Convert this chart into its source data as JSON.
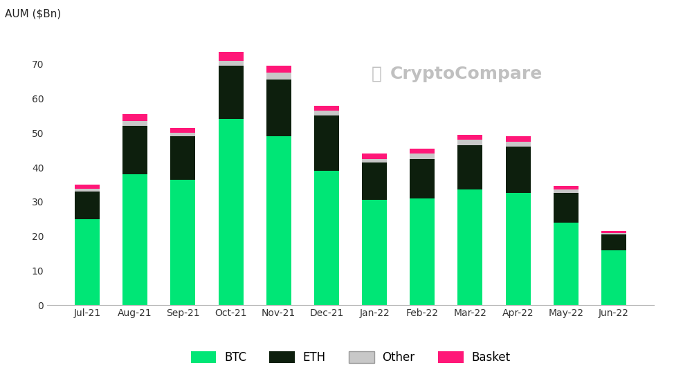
{
  "categories": [
    "Jul-21",
    "Aug-21",
    "Sep-21",
    "Oct-21",
    "Nov-21",
    "Dec-21",
    "Jan-22",
    "Feb-22",
    "Mar-22",
    "Apr-22",
    "May-22",
    "Jun-22"
  ],
  "btc": [
    25.0,
    38.0,
    36.5,
    54.0,
    49.0,
    39.0,
    30.5,
    31.0,
    33.5,
    32.5,
    24.0,
    16.0
  ],
  "eth": [
    8.0,
    14.0,
    12.5,
    15.5,
    16.5,
    16.0,
    11.0,
    11.5,
    13.0,
    13.5,
    8.5,
    4.5
  ],
  "other": [
    0.8,
    1.5,
    1.0,
    1.5,
    2.0,
    1.5,
    1.0,
    1.5,
    1.5,
    1.5,
    1.0,
    0.5
  ],
  "basket": [
    1.2,
    2.0,
    1.5,
    2.5,
    2.0,
    1.5,
    1.5,
    1.5,
    1.5,
    1.5,
    1.0,
    0.5
  ],
  "btc_color": "#00e676",
  "eth_color": "#0d1f0d",
  "other_color": "#c8c8c8",
  "basket_color": "#ff1778",
  "ylabel": "AUM ($Bn)",
  "ylim": [
    0,
    80
  ],
  "yticks": [
    0,
    10,
    20,
    30,
    40,
    50,
    60,
    70
  ],
  "bg_color": "#ffffff",
  "watermark": "CryptoCompare",
  "legend_labels": [
    "BTC",
    "ETH",
    "Other",
    "Basket"
  ]
}
